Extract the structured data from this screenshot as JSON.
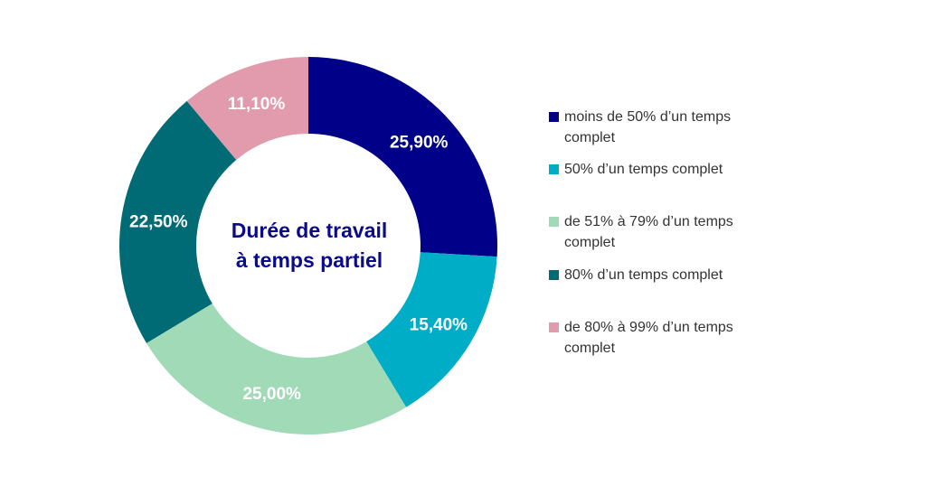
{
  "chart_data": {
    "type": "pie",
    "variant": "donut",
    "center_title_lines": [
      "Durée de travail",
      "à temps partiel"
    ],
    "slices": [
      {
        "name": "moins de 50% d’un temps complet",
        "value": 25.9,
        "label": "25,90%",
        "color": "#000088"
      },
      {
        "name": "50% d’un temps complet",
        "value": 15.4,
        "label": "15,40%",
        "color": "#00adc6"
      },
      {
        "name": "de 51% à 79% d’un temps complet",
        "value": 25.0,
        "label": "25,00%",
        "color": "#a0dab7"
      },
      {
        "name": "80% d’un temps complet",
        "value": 22.5,
        "label": "22,50%",
        "color": "#006a75"
      },
      {
        "name": "de 80% à 99% d’un temps complet",
        "value": 11.1,
        "label": "11,10%",
        "color": "#e29aad"
      }
    ],
    "legend_position": "right"
  }
}
